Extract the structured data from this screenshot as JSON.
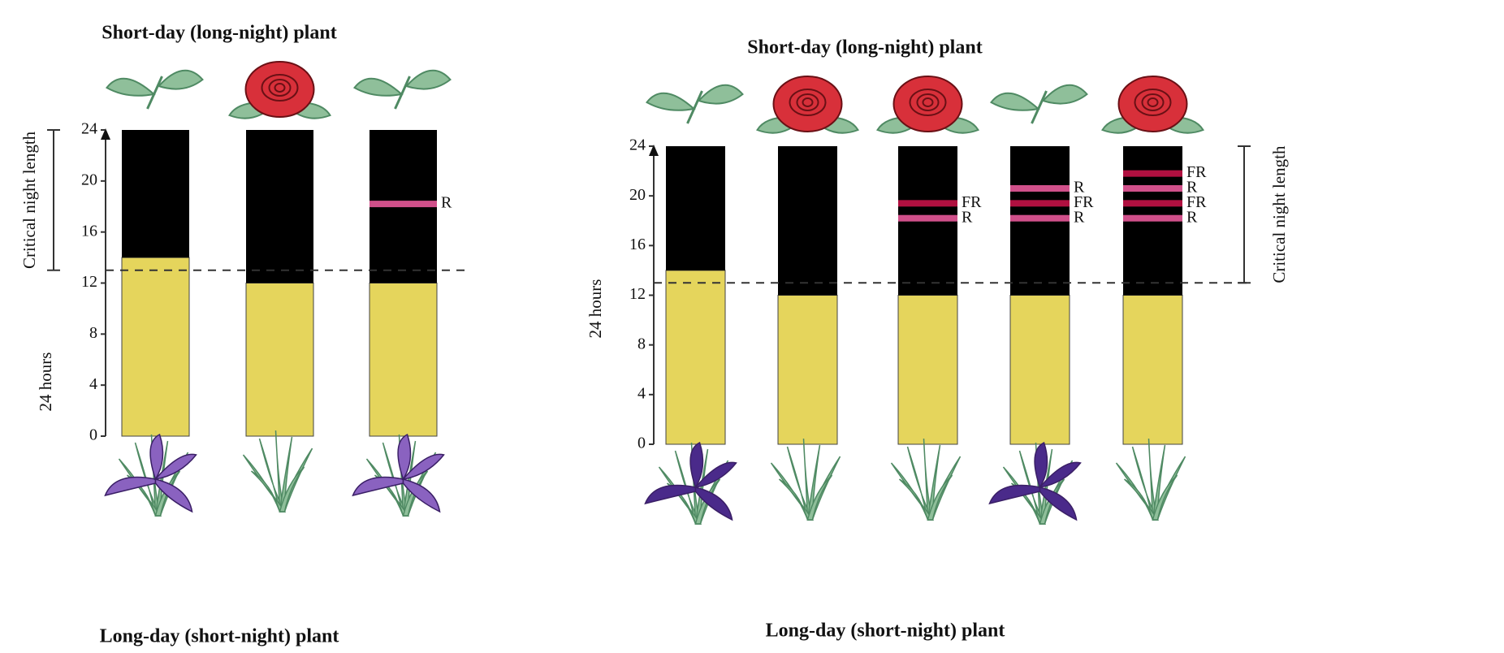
{
  "chart_data": [
    {
      "type": "photoperiod",
      "title": "Short-day (long-night) plant",
      "bottom_label": "Long-day (short-night) plant",
      "y_label": "24 hours",
      "critical_label": "Critical night length",
      "critical_value": 13,
      "ylim": [
        0,
        24
      ],
      "yticks": [
        0,
        4,
        8,
        12,
        16,
        20,
        24
      ],
      "day_color": "#e5d55c",
      "night_color": "#000000",
      "bars": [
        {
          "day": 14,
          "night": 10,
          "flashes": [],
          "short_day_flowers": false,
          "long_day_flowers": true
        },
        {
          "day": 12,
          "night": 12,
          "flashes": [],
          "short_day_flowers": true,
          "long_day_flowers": false
        },
        {
          "day": 12,
          "night": 12,
          "flashes": [
            {
              "hour": 18.2,
              "label": "R",
              "color": "#d0508a"
            }
          ],
          "short_day_flowers": false,
          "long_day_flowers": true
        }
      ]
    },
    {
      "type": "photoperiod",
      "title": "Short-day (long-night) plant",
      "bottom_label": "Long-day (short-night) plant",
      "y_label": "24 hours",
      "critical_label": "Critical night length",
      "critical_value": 13,
      "ylim": [
        0,
        24
      ],
      "yticks": [
        0,
        4,
        8,
        12,
        16,
        20,
        24
      ],
      "day_color": "#e5d55c",
      "night_color": "#000000",
      "bars": [
        {
          "day": 14,
          "night": 10,
          "flashes": [],
          "short_day_flowers": false,
          "long_day_flowers": true
        },
        {
          "day": 12,
          "night": 12,
          "flashes": [],
          "short_day_flowers": true,
          "long_day_flowers": false
        },
        {
          "day": 12,
          "night": 12,
          "flashes": [
            {
              "hour": 18.2,
              "label": "R",
              "color": "#d0508a"
            },
            {
              "hour": 19.4,
              "label": "FR",
              "color": "#b01040"
            }
          ],
          "short_day_flowers": true,
          "long_day_flowers": false
        },
        {
          "day": 12,
          "night": 12,
          "flashes": [
            {
              "hour": 18.2,
              "label": "R",
              "color": "#d0508a"
            },
            {
              "hour": 19.4,
              "label": "FR",
              "color": "#b01040"
            },
            {
              "hour": 20.6,
              "label": "R",
              "color": "#d0508a"
            }
          ],
          "short_day_flowers": false,
          "long_day_flowers": true
        },
        {
          "day": 12,
          "night": 12,
          "flashes": [
            {
              "hour": 18.2,
              "label": "R",
              "color": "#d0508a"
            },
            {
              "hour": 19.4,
              "label": "FR",
              "color": "#b01040"
            },
            {
              "hour": 20.6,
              "label": "R",
              "color": "#d0508a"
            },
            {
              "hour": 21.8,
              "label": "FR",
              "color": "#b01040"
            }
          ],
          "short_day_flowers": true,
          "long_day_flowers": false
        }
      ]
    }
  ]
}
